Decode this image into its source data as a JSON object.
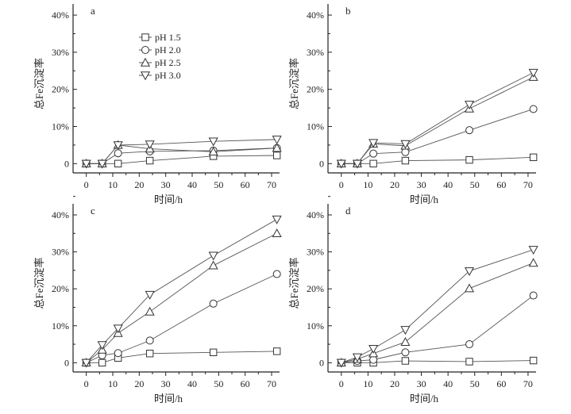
{
  "chart_data": [
    {
      "type": "line",
      "panel_label": "a",
      "xlabel": "时间/h",
      "ylabel": "总Fe沉淀率",
      "x": [
        0,
        6,
        12,
        24,
        48,
        72
      ],
      "xlim": [
        -5,
        73
      ],
      "ylim": [
        -2.5,
        43
      ],
      "xticks": [
        0,
        10,
        20,
        30,
        40,
        50,
        60,
        70
      ],
      "yticks": [
        0,
        10,
        20,
        30,
        40
      ],
      "ytick_labels": [
        "0",
        "10%",
        "20%",
        "30%",
        "40%"
      ],
      "legend": "top-center",
      "series": [
        {
          "name": "pH 1.5",
          "marker": "square",
          "values": [
            0,
            0,
            0,
            0.8,
            2.0,
            2.2
          ]
        },
        {
          "name": "pH 2.0",
          "marker": "circle",
          "values": [
            0,
            0,
            2.8,
            3.3,
            3.5,
            4.2
          ]
        },
        {
          "name": "pH 2.5",
          "marker": "triangle-up",
          "values": [
            0,
            0,
            5.0,
            4.0,
            3.2,
            4.2
          ]
        },
        {
          "name": "pH 3.0",
          "marker": "triangle-down",
          "values": [
            0,
            0,
            5.0,
            5.2,
            6.0,
            6.5
          ]
        }
      ]
    },
    {
      "type": "line",
      "panel_label": "b",
      "xlabel": "时间/h",
      "ylabel": "总Fe沉淀率",
      "x": [
        0,
        6,
        12,
        24,
        48,
        72
      ],
      "xlim": [
        -5,
        73
      ],
      "ylim": [
        -2.5,
        43
      ],
      "xticks": [
        0,
        10,
        20,
        30,
        40,
        50,
        60,
        70
      ],
      "yticks": [
        0,
        10,
        20,
        30,
        40
      ],
      "ytick_labels": [
        "0",
        "10%",
        "20%",
        "30%",
        "40%"
      ],
      "series": [
        {
          "marker": "square",
          "values": [
            0,
            0,
            0,
            0.8,
            1.0,
            1.7
          ]
        },
        {
          "marker": "circle",
          "values": [
            0,
            0,
            2.7,
            3.1,
            9.0,
            14.7
          ]
        },
        {
          "marker": "triangle-up",
          "values": [
            0,
            0,
            5.3,
            4.8,
            14.8,
            23.3
          ]
        },
        {
          "marker": "triangle-down",
          "values": [
            0,
            0,
            5.6,
            5.3,
            15.9,
            24.5
          ]
        }
      ]
    },
    {
      "type": "line",
      "panel_label": "c",
      "xlabel": "时间/h",
      "ylabel": "总Fe沉淀率",
      "x": [
        0,
        6,
        12,
        24,
        48,
        72
      ],
      "xlim": [
        -5,
        73
      ],
      "ylim": [
        -2.5,
        43
      ],
      "xticks": [
        0,
        10,
        20,
        30,
        40,
        50,
        60,
        70
      ],
      "yticks": [
        0,
        10,
        20,
        30,
        40
      ],
      "ytick_labels": [
        "0",
        "10%",
        "20%",
        "30%",
        "40%"
      ],
      "series": [
        {
          "marker": "square",
          "values": [
            0,
            0,
            1.3,
            2.5,
            2.8,
            3.1
          ]
        },
        {
          "marker": "circle",
          "values": [
            0,
            2.0,
            2.6,
            6.0,
            16.0,
            24.0
          ]
        },
        {
          "marker": "triangle-up",
          "values": [
            0,
            3.5,
            8.0,
            13.8,
            26.3,
            35.0
          ]
        },
        {
          "marker": "triangle-down",
          "values": [
            0,
            4.8,
            9.3,
            18.4,
            29.0,
            38.8
          ]
        }
      ]
    },
    {
      "type": "line",
      "panel_label": "d",
      "xlabel": "时间/h",
      "ylabel": "总Fe沉淀率",
      "x": [
        0,
        6,
        12,
        24,
        48,
        72
      ],
      "xlim": [
        -5,
        73
      ],
      "ylim": [
        -2.5,
        43
      ],
      "xticks": [
        0,
        10,
        20,
        30,
        40,
        50,
        60,
        70
      ],
      "yticks": [
        0,
        10,
        20,
        30,
        40
      ],
      "ytick_labels": [
        "0",
        "10%",
        "20%",
        "30%",
        "40%"
      ],
      "series": [
        {
          "marker": "square",
          "values": [
            0,
            0,
            0,
            0.5,
            0.3,
            0.6
          ]
        },
        {
          "marker": "circle",
          "values": [
            0,
            0.5,
            0.8,
            2.8,
            5.0,
            18.2
          ]
        },
        {
          "marker": "triangle-up",
          "values": [
            0,
            1.0,
            2.5,
            5.6,
            20.1,
            27.0
          ]
        },
        {
          "marker": "triangle-down",
          "values": [
            0,
            1.5,
            3.8,
            8.9,
            24.8,
            30.6
          ]
        }
      ]
    }
  ],
  "colors": {
    "line": "#555555",
    "marker": "#333333",
    "axis": "#222222"
  }
}
